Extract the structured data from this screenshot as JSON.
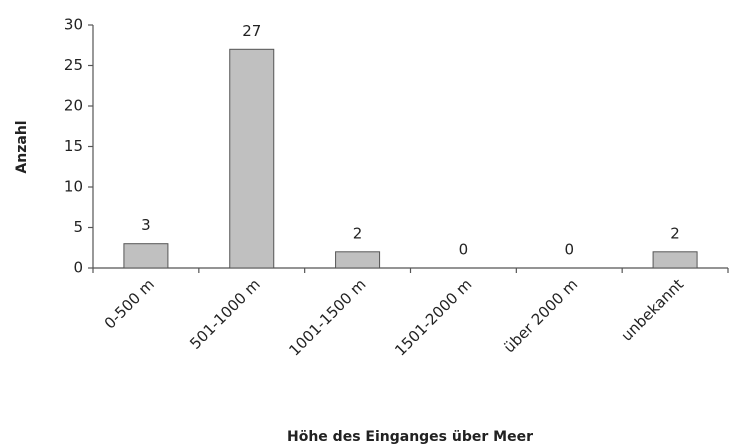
{
  "chart_data": {
    "type": "bar",
    "categories": [
      "0-500 m",
      "501-1000 m",
      "1001-1500 m",
      "1501-2000 m",
      "über 2000 m",
      "unbekannt"
    ],
    "values": [
      3,
      27,
      2,
      0,
      0,
      2
    ],
    "color": "#c0c0c0",
    "ylim": [
      0,
      30
    ],
    "yticks": [
      0,
      5,
      10,
      15,
      20,
      25,
      30
    ],
    "ylabel": "Anzahl",
    "xlabel": "Höhe des Einganges über Meer",
    "data_labels": true
  }
}
